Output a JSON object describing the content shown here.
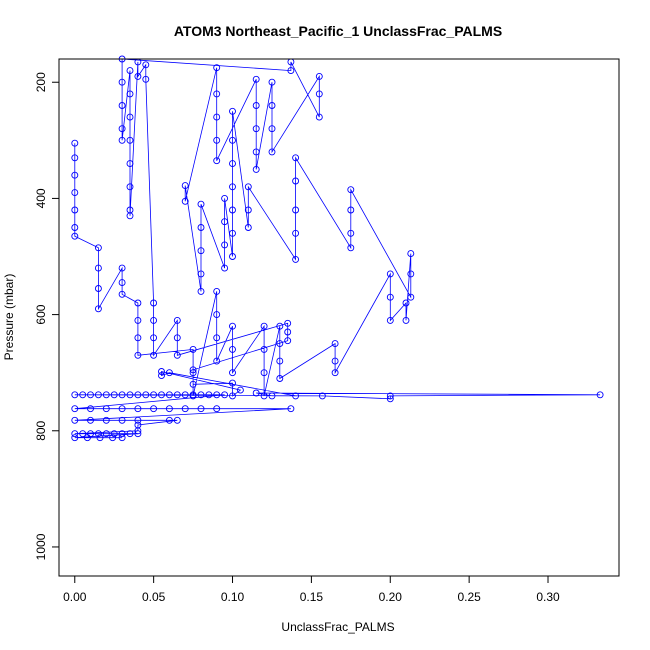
{
  "chart_data": {
    "type": "scatter",
    "title": "ATOM3 Northeast_Pacific_1 UnclassFrac_PALMS",
    "xlabel": "UnclassFrac_PALMS",
    "ylabel": "Pressure (mbar)",
    "xlim": [
      -0.01,
      0.345
    ],
    "ylim": [
      1050,
      160
    ],
    "y_reversed": true,
    "xticks": [
      0.0,
      0.05,
      0.1,
      0.15,
      0.2,
      0.25,
      0.3
    ],
    "xtick_labels": [
      "0.00",
      "0.05",
      "0.10",
      "0.15",
      "0.20",
      "0.25",
      "0.30"
    ],
    "yticks": [
      200,
      400,
      600,
      800,
      1000
    ],
    "ytick_labels": [
      "200",
      "400",
      "600",
      "800",
      "1000"
    ],
    "grid": false,
    "legend": "none",
    "marker": "open-circle",
    "connected_by_line": true,
    "color": "#0000ff",
    "series": [
      {
        "points": [
          [
            0.0,
            305
          ],
          [
            0.0,
            330
          ],
          [
            0.0,
            360
          ],
          [
            0.0,
            390
          ],
          [
            0.0,
            420
          ],
          [
            0.0,
            450
          ],
          [
            0.0,
            465
          ],
          [
            0.015,
            485
          ],
          [
            0.015,
            520
          ],
          [
            0.015,
            555
          ],
          [
            0.015,
            590
          ],
          [
            0.03,
            520
          ],
          [
            0.03,
            545
          ],
          [
            0.03,
            565
          ],
          [
            0.04,
            580
          ],
          [
            0.04,
            610
          ],
          [
            0.04,
            640
          ],
          [
            0.04,
            670
          ],
          [
            0.075,
            660
          ],
          [
            0.075,
            700
          ],
          [
            0.075,
            740
          ],
          [
            0.09,
            560
          ],
          [
            0.09,
            600
          ],
          [
            0.09,
            640
          ],
          [
            0.09,
            680
          ],
          [
            0.1,
            620
          ],
          [
            0.1,
            660
          ],
          [
            0.1,
            700
          ],
          [
            0.12,
            620
          ],
          [
            0.12,
            660
          ],
          [
            0.12,
            700
          ],
          [
            0.12,
            740
          ],
          [
            0.13,
            620
          ],
          [
            0.13,
            650
          ],
          [
            0.13,
            680
          ],
          [
            0.13,
            710
          ],
          [
            0.165,
            650
          ],
          [
            0.165,
            680
          ],
          [
            0.165,
            700
          ],
          [
            0.2,
            530
          ],
          [
            0.2,
            570
          ],
          [
            0.2,
            610
          ],
          [
            0.21,
            580
          ],
          [
            0.21,
            610
          ],
          [
            0.213,
            495
          ],
          [
            0.213,
            530
          ],
          [
            0.213,
            570
          ],
          [
            0.175,
            385
          ],
          [
            0.175,
            420
          ],
          [
            0.175,
            460
          ],
          [
            0.175,
            485
          ],
          [
            0.14,
            330
          ],
          [
            0.14,
            370
          ],
          [
            0.14,
            420
          ],
          [
            0.14,
            460
          ],
          [
            0.14,
            505
          ],
          [
            0.11,
            380
          ],
          [
            0.11,
            420
          ],
          [
            0.11,
            450
          ],
          [
            0.1,
            250
          ],
          [
            0.1,
            300
          ],
          [
            0.1,
            340
          ],
          [
            0.1,
            380
          ],
          [
            0.1,
            420
          ],
          [
            0.1,
            460
          ],
          [
            0.1,
            500
          ],
          [
            0.095,
            400
          ],
          [
            0.095,
            440
          ],
          [
            0.095,
            480
          ],
          [
            0.095,
            520
          ],
          [
            0.08,
            410
          ],
          [
            0.08,
            450
          ],
          [
            0.08,
            490
          ],
          [
            0.08,
            530
          ],
          [
            0.08,
            560
          ],
          [
            0.07,
            378
          ],
          [
            0.07,
            405
          ],
          [
            0.09,
            175
          ],
          [
            0.09,
            220
          ],
          [
            0.09,
            260
          ],
          [
            0.09,
            300
          ],
          [
            0.09,
            335
          ],
          [
            0.115,
            195
          ],
          [
            0.115,
            240
          ],
          [
            0.115,
            280
          ],
          [
            0.115,
            320
          ],
          [
            0.115,
            350
          ],
          [
            0.125,
            200
          ],
          [
            0.125,
            240
          ],
          [
            0.125,
            280
          ],
          [
            0.125,
            320
          ],
          [
            0.155,
            190
          ],
          [
            0.155,
            220
          ],
          [
            0.155,
            260
          ],
          [
            0.137,
            165
          ],
          [
            0.137,
            180
          ],
          [
            0.03,
            160
          ],
          [
            0.03,
            200
          ],
          [
            0.03,
            240
          ],
          [
            0.03,
            280
          ],
          [
            0.03,
            300
          ],
          [
            0.035,
            180
          ],
          [
            0.035,
            220
          ],
          [
            0.035,
            260
          ],
          [
            0.035,
            300
          ],
          [
            0.035,
            340
          ],
          [
            0.035,
            380
          ],
          [
            0.035,
            420
          ],
          [
            0.035,
            430
          ],
          [
            0.04,
            165
          ],
          [
            0.04,
            190
          ],
          [
            0.045,
            170
          ],
          [
            0.045,
            195
          ],
          [
            0.05,
            580
          ],
          [
            0.05,
            610
          ],
          [
            0.05,
            640
          ],
          [
            0.05,
            670
          ],
          [
            0.065,
            610
          ],
          [
            0.065,
            640
          ],
          [
            0.065,
            670
          ],
          [
            0.135,
            615
          ],
          [
            0.135,
            630
          ],
          [
            0.135,
            645
          ],
          [
            0.075,
            695
          ],
          [
            0.075,
            720
          ],
          [
            0.1,
            718
          ],
          [
            0.1,
            740
          ],
          [
            0.105,
            730
          ],
          [
            0.055,
            698
          ],
          [
            0.055,
            705
          ],
          [
            0.06,
            700
          ],
          [
            0.14,
            740
          ],
          [
            0.125,
            740
          ],
          [
            0.115,
            735
          ],
          [
            0.333,
            738
          ],
          [
            0.2,
            740
          ],
          [
            0.2,
            745
          ],
          [
            0.157,
            740
          ],
          [
            0.0,
            738
          ],
          [
            0.005,
            738
          ],
          [
            0.01,
            738
          ],
          [
            0.015,
            738
          ],
          [
            0.02,
            738
          ],
          [
            0.025,
            738
          ],
          [
            0.03,
            738
          ],
          [
            0.035,
            738
          ],
          [
            0.04,
            738
          ],
          [
            0.045,
            738
          ],
          [
            0.05,
            738
          ],
          [
            0.055,
            738
          ],
          [
            0.06,
            738
          ],
          [
            0.065,
            738
          ],
          [
            0.07,
            738
          ],
          [
            0.075,
            738
          ],
          [
            0.08,
            738
          ],
          [
            0.085,
            738
          ],
          [
            0.09,
            738
          ],
          [
            0.095,
            738
          ],
          [
            0.0,
            762
          ],
          [
            0.01,
            762
          ],
          [
            0.02,
            762
          ],
          [
            0.03,
            762
          ],
          [
            0.04,
            762
          ],
          [
            0.05,
            762
          ],
          [
            0.06,
            762
          ],
          [
            0.07,
            762
          ],
          [
            0.08,
            762
          ],
          [
            0.09,
            762
          ],
          [
            0.137,
            762
          ],
          [
            0.0,
            782
          ],
          [
            0.01,
            782
          ],
          [
            0.02,
            782
          ],
          [
            0.03,
            782
          ],
          [
            0.04,
            782
          ],
          [
            0.06,
            782
          ],
          [
            0.065,
            782
          ],
          [
            0.04,
            790
          ],
          [
            0.04,
            800
          ],
          [
            0.0,
            805
          ],
          [
            0.005,
            805
          ],
          [
            0.01,
            805
          ],
          [
            0.015,
            805
          ],
          [
            0.02,
            805
          ],
          [
            0.025,
            805
          ],
          [
            0.03,
            805
          ],
          [
            0.035,
            805
          ],
          [
            0.04,
            805
          ],
          [
            0.0,
            812
          ],
          [
            0.008,
            812
          ],
          [
            0.016,
            812
          ],
          [
            0.024,
            812
          ],
          [
            0.03,
            812
          ]
        ]
      }
    ]
  }
}
